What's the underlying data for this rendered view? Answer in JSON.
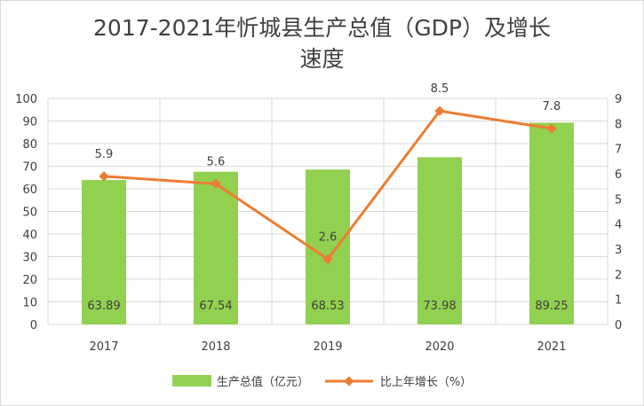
{
  "title": {
    "line1": "2017-2021年忻城县生产总值（GDP）及增长",
    "line2": "速度"
  },
  "colors": {
    "bar": "#92d050",
    "line": "#ed7d31",
    "grid": "#d9d9d9",
    "text": "#404040"
  },
  "legend": {
    "bar_label": "生产总值（亿元）",
    "line_label": "比上年增长（%）"
  },
  "chart_data": {
    "type": "bar",
    "categories": [
      "2017",
      "2018",
      "2019",
      "2020",
      "2021"
    ],
    "series": [
      {
        "name": "生产总值（亿元）",
        "type": "bar",
        "axis": "left",
        "values": [
          63.89,
          67.54,
          68.53,
          73.98,
          89.25
        ]
      },
      {
        "name": "比上年增长（%）",
        "type": "line",
        "axis": "right",
        "values": [
          5.9,
          5.6,
          2.6,
          8.5,
          7.8
        ]
      }
    ],
    "y_left": {
      "min": 0,
      "max": 100,
      "step": 10
    },
    "y_right": {
      "min": 0,
      "max": 9,
      "step": 1
    },
    "grid": true,
    "legend_position": "bottom"
  }
}
